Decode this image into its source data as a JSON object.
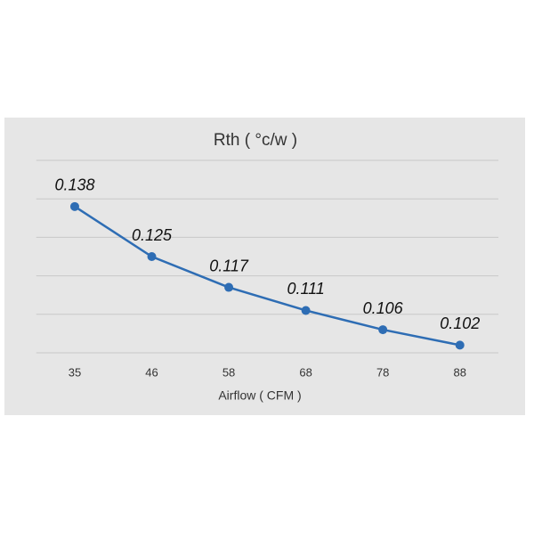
{
  "chart_data": {
    "type": "line",
    "title": "Rth ( °c/w )",
    "x_label": "Airflow ( CFM )",
    "categories": [
      "35",
      "46",
      "58",
      "68",
      "78",
      "88"
    ],
    "values": [
      0.138,
      0.125,
      0.117,
      0.111,
      0.106,
      0.102
    ],
    "color": "#2e6db4",
    "ylim": [
      0.1,
      0.15
    ],
    "yticks": [
      0.1,
      0.11,
      0.12,
      0.13,
      0.14,
      0.15
    ],
    "ytick_labels_visible": false,
    "grid": true,
    "data_labels": true
  }
}
